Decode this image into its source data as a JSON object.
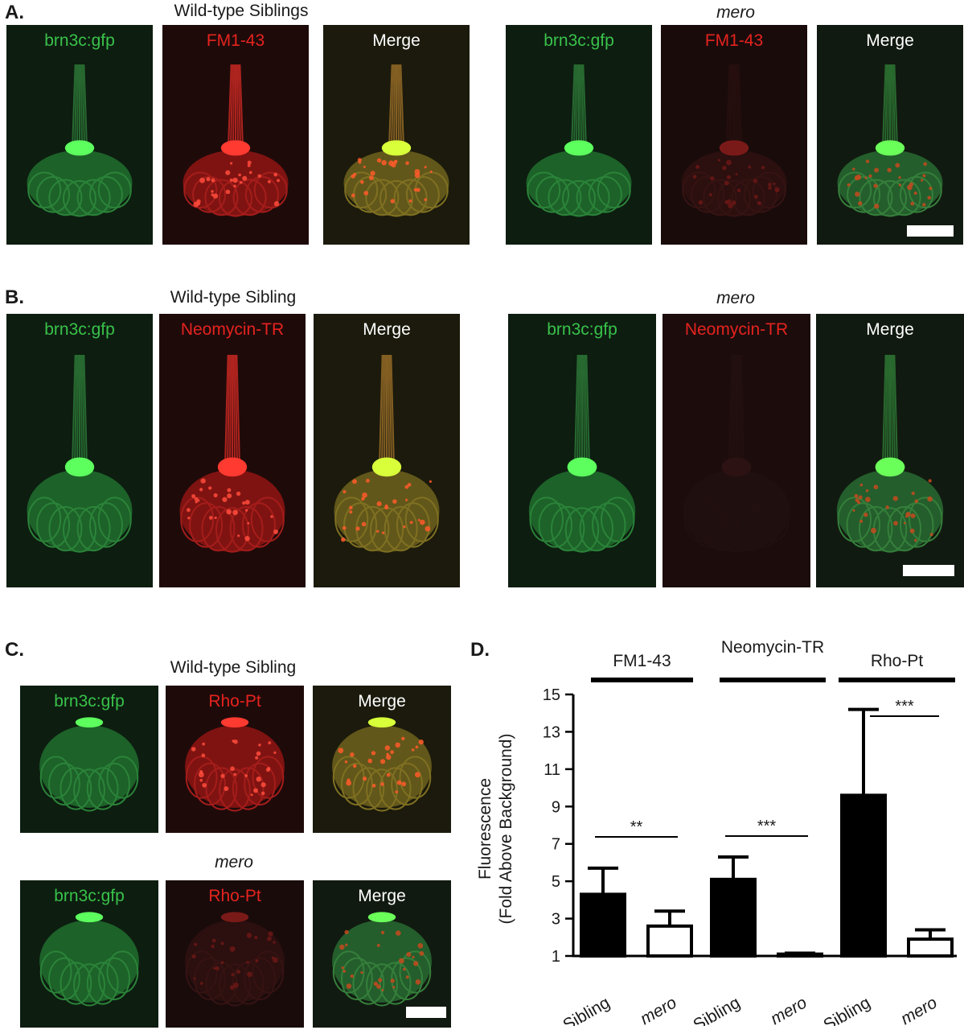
{
  "panels": {
    "A": {
      "letter": "A.",
      "left": {
        "title": "Wild-type Siblings",
        "labels": [
          "brn3c:gfp",
          "FM1-43",
          "Merge"
        ]
      },
      "right": {
        "title": "mero",
        "labels": [
          "brn3c:gfp",
          "FM1-43",
          "Merge"
        ]
      }
    },
    "B": {
      "letter": "B.",
      "left": {
        "title": "Wild-type Sibling",
        "labels": [
          "brn3c:gfp",
          "Neomycin-TR",
          "Merge"
        ]
      },
      "right": {
        "title": "mero",
        "labels": [
          "brn3c:gfp",
          "Neomycin-TR",
          "Merge"
        ]
      }
    },
    "C": {
      "letter": "C.",
      "top": {
        "title": "Wild-type Sibling",
        "labels": [
          "brn3c:gfp",
          "Rho-Pt",
          "Merge"
        ]
      },
      "bottom": {
        "title": "mero",
        "labels": [
          "brn3c:gfp",
          "Rho-Pt",
          "Merge"
        ]
      }
    },
    "D": {
      "letter": "D."
    }
  },
  "colors": {
    "gfp": "#39c24a",
    "red_stain": "#e5231e",
    "bar_fill": "#000000"
  },
  "chart_data": {
    "type": "bar",
    "title": "",
    "ylabel": "Fluorescence",
    "ylabel2": "(Fold Above Background)",
    "ylim": [
      1,
      15
    ],
    "yticks": [
      1,
      3,
      5,
      7,
      9,
      11,
      13,
      15
    ],
    "groups": [
      {
        "name": "FM1-43",
        "bars": [
          {
            "label": "Sibling",
            "value": 4.3,
            "err": 1.4,
            "fill": "black"
          },
          {
            "label": "mero",
            "value": 2.6,
            "err": 0.8,
            "fill": "white"
          }
        ],
        "significance": "**"
      },
      {
        "name": "Neomycin-TR",
        "bars": [
          {
            "label": "Sibling",
            "value": 5.1,
            "err": 1.2,
            "fill": "black"
          },
          {
            "label": "mero",
            "value": 1.1,
            "err": 0.05,
            "fill": "white"
          }
        ],
        "significance": "***"
      },
      {
        "name": "Rho-Pt",
        "bars": [
          {
            "label": "Sibling",
            "value": 9.6,
            "err": 4.6,
            "fill": "black"
          },
          {
            "label": "mero",
            "value": 1.9,
            "err": 0.5,
            "fill": "white"
          }
        ],
        "significance": "***"
      }
    ]
  }
}
